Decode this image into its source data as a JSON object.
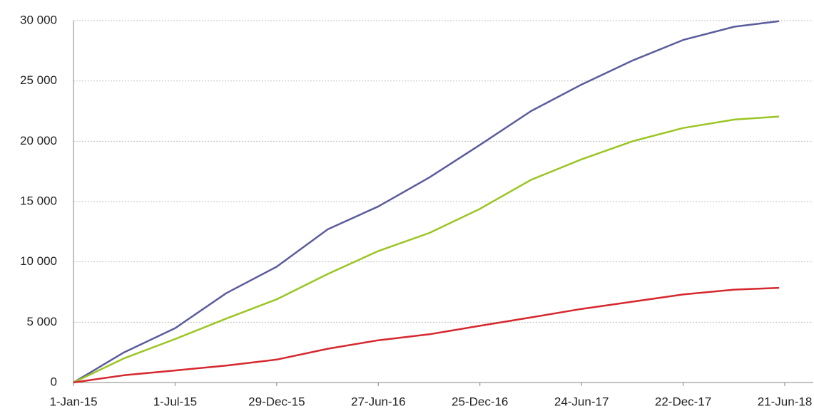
{
  "chart_data": {
    "type": "line",
    "x": [
      "2015-01-01",
      "2015-04-01",
      "2015-07-01",
      "2015-09-30",
      "2015-12-29",
      "2016-03-29",
      "2016-06-27",
      "2016-09-26",
      "2016-12-25",
      "2017-03-26",
      "2017-06-24",
      "2017-09-23",
      "2017-12-22",
      "2018-03-23",
      "2018-06-11"
    ],
    "series": [
      {
        "color": "#5a5c9c",
        "values": [
          0,
          2500,
          4500,
          7400,
          9600,
          12700,
          14600,
          17000,
          19700,
          22500,
          24700,
          26700,
          28400,
          29500,
          29950
        ]
      },
      {
        "color": "#9bc522",
        "values": [
          0,
          2000,
          3600,
          5300,
          6900,
          9000,
          10900,
          12400,
          14400,
          16800,
          18500,
          20000,
          21100,
          21800,
          22050
        ]
      },
      {
        "color": "#d5272e",
        "values": [
          0,
          600,
          1000,
          1400,
          1900,
          2800,
          3500,
          4000,
          4700,
          5400,
          6100,
          6700,
          7300,
          7700,
          7850
        ]
      }
    ],
    "xlim": [
      "2015-01-01",
      "2018-06-21"
    ],
    "xticks": [
      {
        "value": "2015-01-01",
        "label": "1-Jan-15"
      },
      {
        "value": "2015-07-01",
        "label": "1-Jul-15"
      },
      {
        "value": "2015-12-29",
        "label": "29-Dec-15"
      },
      {
        "value": "2016-06-27",
        "label": "27-Jun-16"
      },
      {
        "value": "2016-12-25",
        "label": "25-Dec-16"
      },
      {
        "value": "2017-06-24",
        "label": "24-Jun-17"
      },
      {
        "value": "2017-12-22",
        "label": "22-Dec-17"
      },
      {
        "value": "2018-06-21",
        "label": "21-Jun-18"
      }
    ],
    "ylim": [
      0,
      30000
    ],
    "yticks": [
      0,
      {
        "value": 5000,
        "label": "5 000"
      },
      {
        "value": 10000,
        "label": "10 000"
      },
      {
        "value": 15000,
        "label": "15 000"
      },
      {
        "value": 20000,
        "label": "20 000"
      },
      {
        "value": 25000,
        "label": "25 000"
      },
      {
        "value": 30000,
        "label": "30 000"
      }
    ],
    "grid": true
  }
}
